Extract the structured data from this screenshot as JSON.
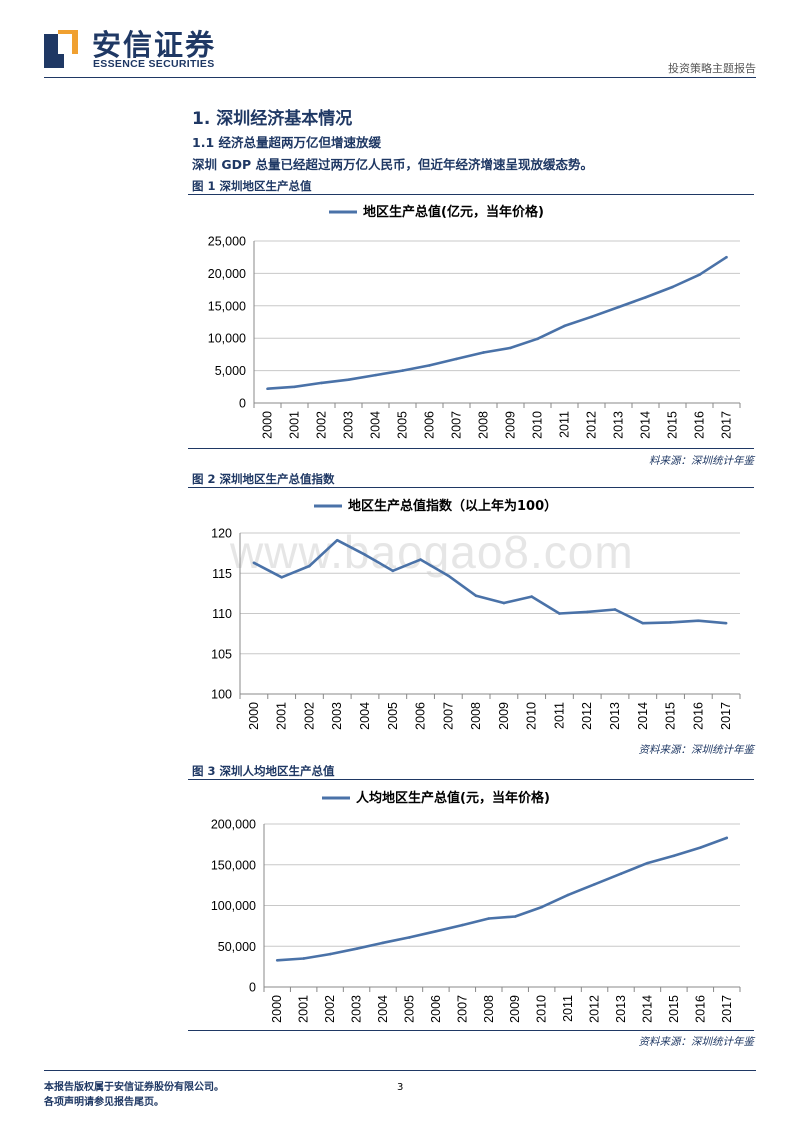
{
  "header": {
    "logo_cn": "安信证券",
    "logo_en": "ESSENCE SECURITIES",
    "report_type": "投资策略主题报告"
  },
  "section": {
    "title": "1. 深圳经济基本情况",
    "subtitle": "1.1 经济总量超两万亿但增速放缓",
    "paragraph": "深圳 GDP 总量已经超过两万亿人民币，但近年经济增速呈现放缓态势。"
  },
  "figures": [
    {
      "caption": "图 1  深圳地区生产总值",
      "source": "料来源：深圳统计年鉴"
    },
    {
      "caption": "图 2  深圳地区生产总值指数",
      "source": "资料来源：深圳统计年鉴"
    },
    {
      "caption": "图 3  深圳人均地区生产总值",
      "source": "资料来源：深圳统计年鉴"
    }
  ],
  "watermark": "www.baogao8.com",
  "colors": {
    "line": "#4a72a8",
    "brand": "#1f3864"
  },
  "chart_data": [
    {
      "type": "line",
      "title": "地区生产总值(亿元，当年价格)",
      "categories": [
        "2000",
        "2001",
        "2002",
        "2003",
        "2004",
        "2005",
        "2006",
        "2007",
        "2008",
        "2009",
        "2010",
        "2011",
        "2012",
        "2013",
        "2014",
        "2015",
        "2016",
        "2017"
      ],
      "values": [
        2200,
        2500,
        3100,
        3600,
        4300,
        5000,
        5800,
        6800,
        7800,
        8500,
        9900,
        11900,
        13300,
        14800,
        16300,
        17900,
        19800,
        22500
      ],
      "ylim": [
        0,
        25000
      ],
      "yticks": [
        "0",
        "5,000",
        "10,000",
        "15,000",
        "20,000",
        "25,000"
      ],
      "ytick_values": [
        0,
        5000,
        10000,
        15000,
        20000,
        25000
      ],
      "legend": "top"
    },
    {
      "type": "line",
      "title": "地区生产总值指数（以上年为100）",
      "categories": [
        "2000",
        "2001",
        "2002",
        "2003",
        "2004",
        "2005",
        "2006",
        "2007",
        "2008",
        "2009",
        "2010",
        "2011",
        "2012",
        "2013",
        "2014",
        "2015",
        "2016",
        "2017"
      ],
      "values": [
        116.3,
        114.5,
        115.9,
        119.1,
        117.3,
        115.3,
        116.7,
        114.7,
        112.2,
        111.3,
        112.1,
        110.0,
        110.2,
        110.5,
        108.8,
        108.9,
        109.1,
        108.8
      ],
      "ylim": [
        100,
        120
      ],
      "yticks": [
        "100",
        "105",
        "110",
        "115",
        "120"
      ],
      "ytick_values": [
        100,
        105,
        110,
        115,
        120
      ],
      "legend": "top"
    },
    {
      "type": "line",
      "title": "人均地区生产总值(元，当年价格)",
      "categories": [
        "2000",
        "2001",
        "2002",
        "2003",
        "2004",
        "2005",
        "2006",
        "2007",
        "2008",
        "2009",
        "2010",
        "2011",
        "2012",
        "2013",
        "2014",
        "2015",
        "2016",
        "2017"
      ],
      "values": [
        32800,
        35000,
        40400,
        47000,
        54200,
        60800,
        68400,
        76000,
        84000,
        86500,
        98000,
        113000,
        126000,
        139000,
        152000,
        161000,
        171000,
        183000
      ],
      "ylim": [
        0,
        200000
      ],
      "yticks": [
        "0",
        "50,000",
        "100,000",
        "150,000",
        "200,000"
      ],
      "ytick_values": [
        0,
        50000,
        100000,
        150000,
        200000
      ],
      "legend": "top"
    }
  ],
  "footer": {
    "line1": "本报告版权属于安信证券股份有限公司。",
    "line2": "各项声明请参见报告尾页。",
    "page": "3"
  }
}
